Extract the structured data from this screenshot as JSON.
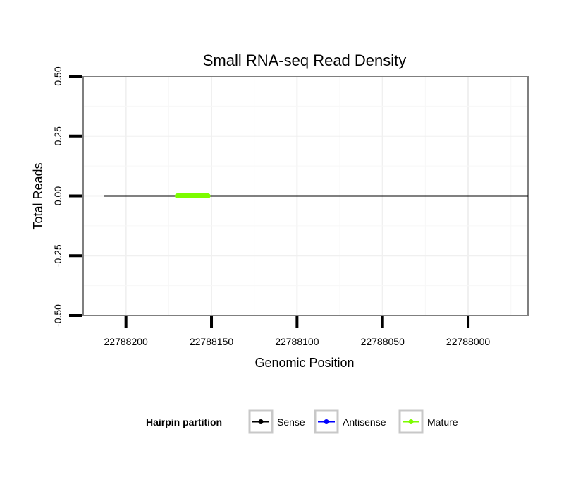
{
  "chart_data": {
    "type": "line",
    "title": "Small RNA-seq Read Density",
    "xlabel": "Genomic Position",
    "ylabel": "Total Reads",
    "xlim": [
      22788225,
      22787965
    ],
    "x_reversed": true,
    "ylim": [
      -0.5,
      0.5
    ],
    "x_ticks": [
      22788200,
      22788150,
      22788100,
      22788050,
      22788000
    ],
    "x_tick_labels": [
      "22788200",
      "22788150",
      "22788100",
      "22788050",
      "22788000"
    ],
    "y_ticks": [
      -0.5,
      -0.25,
      0,
      0.25,
      0.5
    ],
    "y_tick_labels": [
      "-0.50",
      "-0.25",
      "0.00",
      "0.25",
      "0.50"
    ],
    "grid": true,
    "series": [
      {
        "name": "Sense",
        "color": "#000000",
        "x": [
          22788213,
          22787965
        ],
        "values": [
          0,
          0
        ]
      },
      {
        "name": "Antisense",
        "color": "#0000ff",
        "x": [
          22788213,
          22787965
        ],
        "values": [
          0,
          0
        ]
      },
      {
        "name": "Mature",
        "color": "#7cfc00",
        "x": [
          22788170,
          22788152
        ],
        "values": [
          0,
          0
        ]
      }
    ],
    "legend": {
      "title": "Hairpin partition",
      "position": "bottom",
      "entries": [
        "Sense",
        "Antisense",
        "Mature"
      ]
    }
  }
}
